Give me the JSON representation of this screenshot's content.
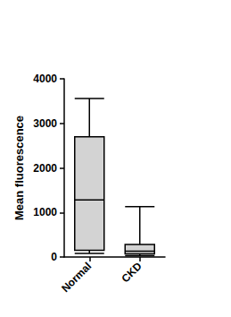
{
  "chart_data": {
    "type": "boxplot",
    "ylabel": "Mean fluorescence",
    "categories": [
      "Normal",
      "CKD"
    ],
    "values": [
      [
        80,
        150,
        1280,
        2700,
        3560
      ],
      [
        30,
        70,
        130,
        280,
        1130
      ]
    ],
    "color": "#d3d3d3",
    "ylim": [
      0,
      4000
    ],
    "yticks": [
      0,
      1000,
      2000,
      3000,
      4000
    ],
    "grid": false
  }
}
